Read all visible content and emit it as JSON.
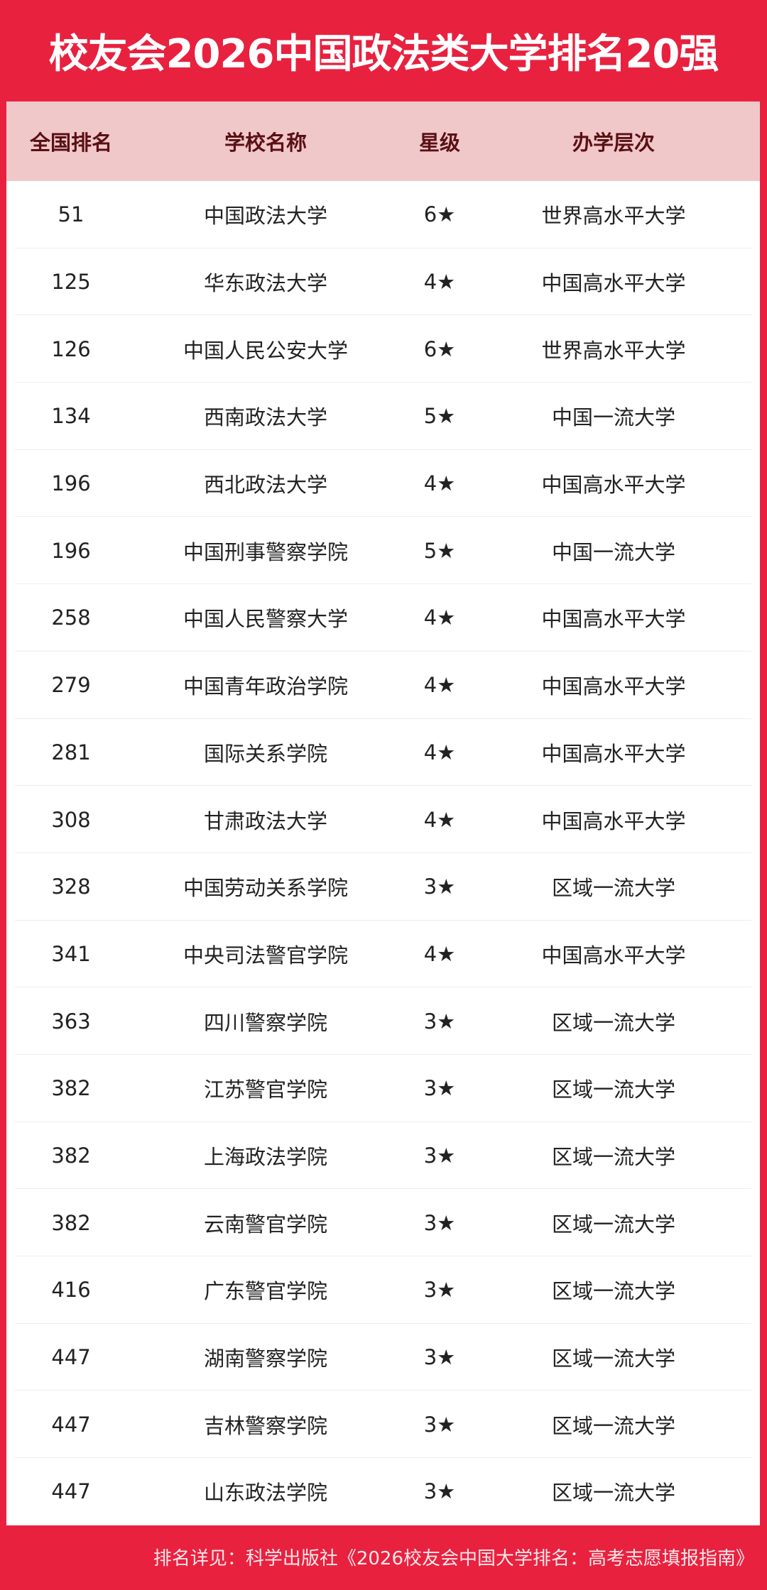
{
  "title": "校友会2026中国政法类大学排名20强",
  "columns": [
    "全国排名",
    "学校名称",
    "星级",
    "办学层次"
  ],
  "rows": [
    [
      "51",
      "中国政法大学",
      "6★",
      "世界高水平大学"
    ],
    [
      "125",
      "华东政法大学",
      "4★",
      "中国高水平大学"
    ],
    [
      "126",
      "中国人民公安大学",
      "6★",
      "世界高水平大学"
    ],
    [
      "134",
      "西南政法大学",
      "5★",
      "中国一流大学"
    ],
    [
      "196",
      "西北政法大学",
      "4★",
      "中国高水平大学"
    ],
    [
      "196",
      "中国刑事警察学院",
      "5★",
      "中国一流大学"
    ],
    [
      "258",
      "中国人民警察大学",
      "4★",
      "中国高水平大学"
    ],
    [
      "279",
      "中国青年政治学院",
      "4★",
      "中国高水平大学"
    ],
    [
      "281",
      "国际关系学院",
      "4★",
      "中国高水平大学"
    ],
    [
      "308",
      "甘肃政法大学",
      "4★",
      "中国高水平大学"
    ],
    [
      "328",
      "中国劳动关系学院",
      "3★",
      "区域一流大学"
    ],
    [
      "341",
      "中央司法警官学院",
      "4★",
      "中国高水平大学"
    ],
    [
      "363",
      "四川警察学院",
      "3★",
      "区域一流大学"
    ],
    [
      "382",
      "江苏警官学院",
      "3★",
      "区域一流大学"
    ],
    [
      "382",
      "上海政法学院",
      "3★",
      "区域一流大学"
    ],
    [
      "382",
      "云南警官学院",
      "3★",
      "区域一流大学"
    ],
    [
      "416",
      "广东警官学院",
      "3★",
      "区域一流大学"
    ],
    [
      "447",
      "湖南警察学院",
      "3★",
      "区域一流大学"
    ],
    [
      "447",
      "吉林警察学院",
      "3★",
      "区域一流大学"
    ],
    [
      "447",
      "山东政法学院",
      "3★",
      "区域一流大学"
    ]
  ],
  "footer": "排名详见：科学出版社《2026校友会中国大学排名：高考志愿填报指南》",
  "colors": {
    "brand_red": "#e8213f",
    "header_bg": "#f0c8ca",
    "header_text": "#5a1014"
  }
}
